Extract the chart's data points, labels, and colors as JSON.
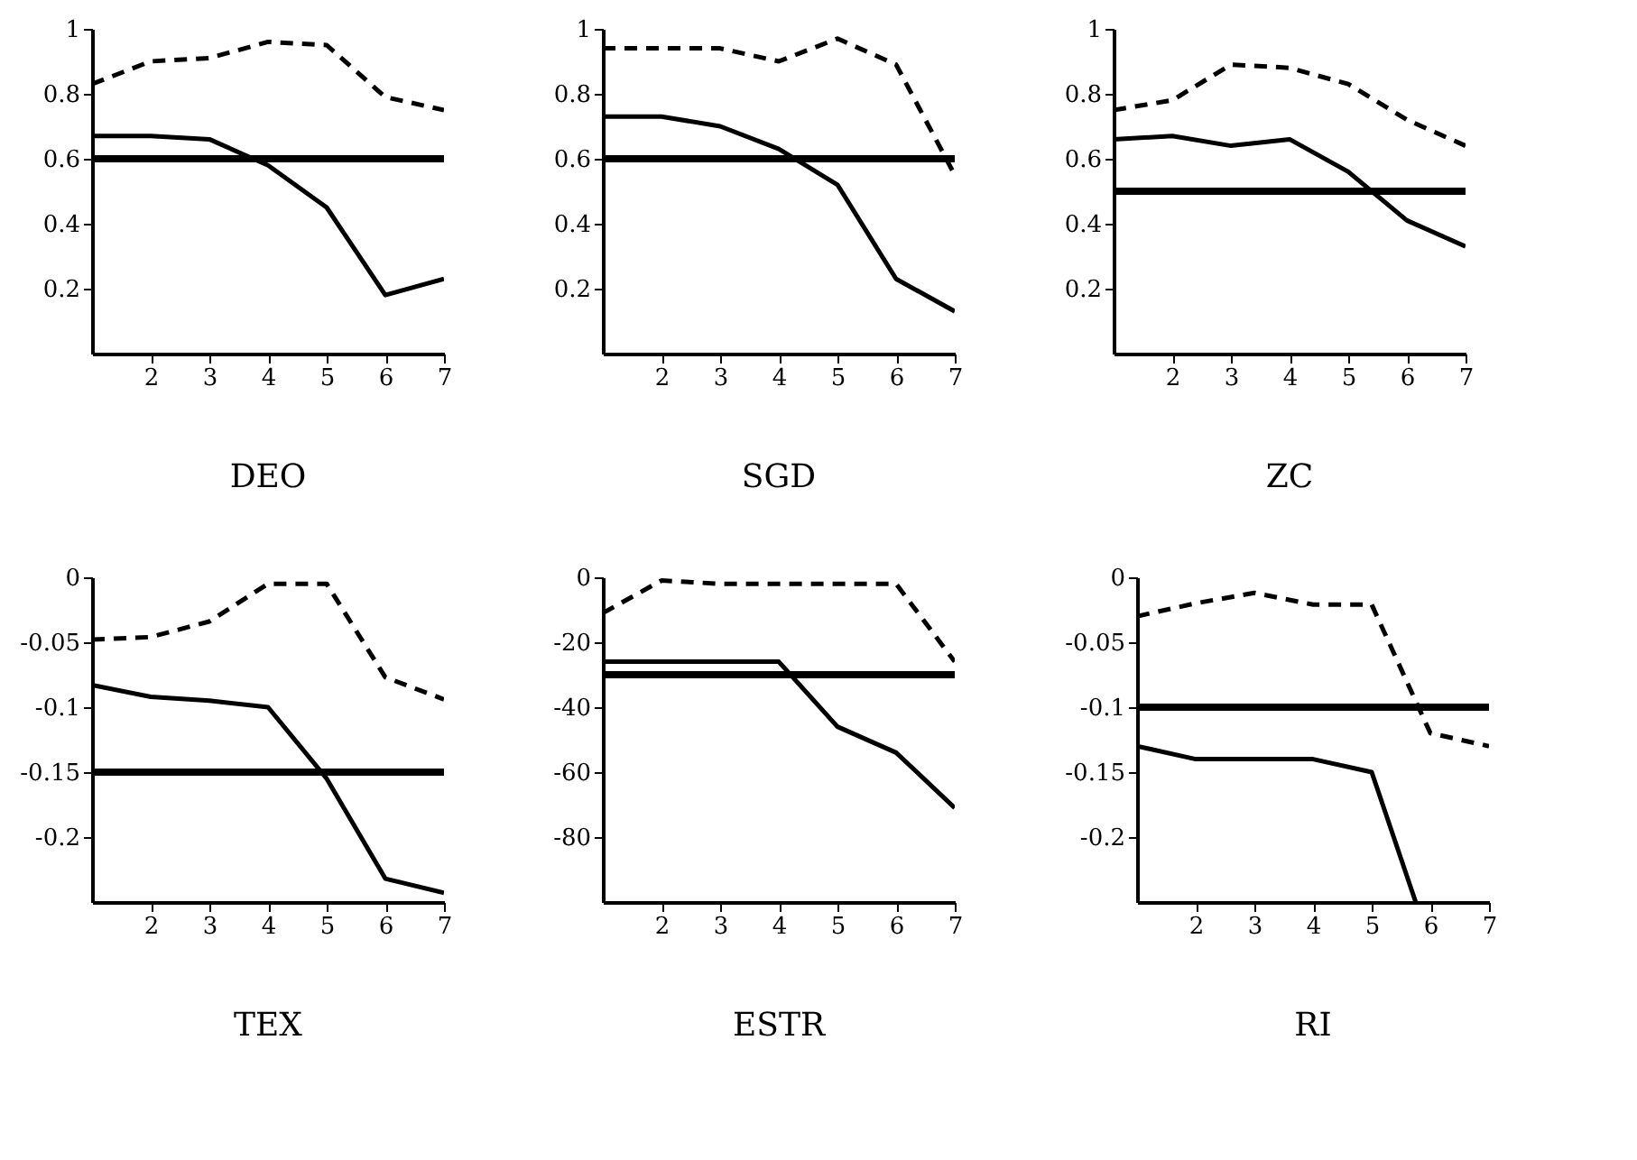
{
  "chart_data": [
    {
      "type": "line",
      "title": "DEO",
      "x": [
        1,
        2,
        3,
        4,
        5,
        6,
        7
      ],
      "xlim": [
        1,
        7
      ],
      "xticks": [
        2,
        3,
        4,
        5,
        6,
        7
      ],
      "ylim": [
        0,
        1
      ],
      "yticks": [
        0.2,
        0.4,
        0.6,
        0.8,
        1
      ],
      "marker": "none",
      "series": [
        {
          "color": "#000000",
          "line_style": "solid",
          "values": [
            0.67,
            0.67,
            0.66,
            0.58,
            0.45,
            0.18,
            0.23
          ]
        },
        {
          "color": "#000000",
          "line_style": "dashed",
          "values": [
            0.83,
            0.9,
            0.91,
            0.96,
            0.95,
            0.79,
            0.75
          ]
        }
      ],
      "ref_lines": [
        {
          "axis": "y",
          "value": 0.6,
          "color": "#000000"
        }
      ]
    },
    {
      "type": "line",
      "title": "SGD",
      "x": [
        1,
        2,
        3,
        4,
        5,
        6,
        7
      ],
      "xlim": [
        1,
        7
      ],
      "xticks": [
        2,
        3,
        4,
        5,
        6,
        7
      ],
      "ylim": [
        0,
        1
      ],
      "yticks": [
        0.2,
        0.4,
        0.6,
        0.8,
        1
      ],
      "marker": "none",
      "series": [
        {
          "color": "#000000",
          "line_style": "solid",
          "values": [
            0.73,
            0.73,
            0.7,
            0.63,
            0.52,
            0.23,
            0.13
          ]
        },
        {
          "color": "#000000",
          "line_style": "dashed",
          "values": [
            0.94,
            0.94,
            0.94,
            0.9,
            0.97,
            0.89,
            0.55
          ]
        }
      ],
      "ref_lines": [
        {
          "axis": "y",
          "value": 0.6,
          "color": "#000000"
        }
      ]
    },
    {
      "type": "line",
      "title": "ZC",
      "x": [
        1,
        2,
        3,
        4,
        5,
        6,
        7
      ],
      "xlim": [
        1,
        7
      ],
      "xticks": [
        2,
        3,
        4,
        5,
        6,
        7
      ],
      "ylim": [
        0,
        1
      ],
      "yticks": [
        0.2,
        0.4,
        0.6,
        0.8,
        1
      ],
      "marker": "none",
      "series": [
        {
          "color": "#000000",
          "line_style": "solid",
          "values": [
            0.66,
            0.67,
            0.64,
            0.66,
            0.56,
            0.41,
            0.33
          ]
        },
        {
          "color": "#000000",
          "line_style": "dashed",
          "values": [
            0.75,
            0.78,
            0.89,
            0.88,
            0.83,
            0.72,
            0.64
          ]
        }
      ],
      "ref_lines": [
        {
          "axis": "y",
          "value": 0.5,
          "color": "#000000"
        }
      ]
    },
    {
      "type": "line",
      "title": "TEX",
      "x": [
        1,
        2,
        3,
        4,
        5,
        6,
        7
      ],
      "xlim": [
        1,
        7
      ],
      "xticks": [
        2,
        3,
        4,
        5,
        6,
        7
      ],
      "ylim": [
        -0.25,
        0
      ],
      "yticks": [
        -0.2,
        -0.15,
        -0.1,
        -0.05,
        0
      ],
      "marker": "none",
      "series": [
        {
          "color": "#000000",
          "line_style": "solid",
          "values": [
            -0.083,
            -0.092,
            -0.095,
            -0.1,
            -0.155,
            -0.232,
            -0.243
          ]
        },
        {
          "color": "#000000",
          "line_style": "dashed",
          "values": [
            -0.048,
            -0.046,
            -0.034,
            -0.005,
            -0.005,
            -0.077,
            -0.094
          ]
        }
      ],
      "ref_lines": [
        {
          "axis": "y",
          "value": -0.15,
          "color": "#000000"
        }
      ]
    },
    {
      "type": "line",
      "title": "ESTR",
      "x": [
        1,
        2,
        3,
        4,
        5,
        6,
        7
      ],
      "xlim": [
        1,
        7
      ],
      "xticks": [
        2,
        3,
        4,
        5,
        6,
        7
      ],
      "ylim": [
        -100,
        0
      ],
      "yticks": [
        -80,
        -60,
        -40,
        -20,
        0
      ],
      "marker": "none",
      "series": [
        {
          "color": "#000000",
          "line_style": "solid",
          "values": [
            -26,
            -26,
            -26,
            -26,
            -46,
            -54,
            -71
          ]
        },
        {
          "color": "#000000",
          "line_style": "dashed",
          "values": [
            -11,
            -1,
            -2,
            -2,
            -2,
            -2,
            -26
          ]
        }
      ],
      "ref_lines": [
        {
          "axis": "y",
          "value": -30,
          "color": "#000000"
        }
      ]
    },
    {
      "type": "line",
      "title": "RI",
      "x": [
        1,
        2,
        3,
        4,
        5,
        6,
        7
      ],
      "xlim": [
        1,
        7
      ],
      "xticks": [
        2,
        3,
        4,
        5,
        6,
        7
      ],
      "ylim": [
        -0.25,
        0
      ],
      "yticks": [
        -0.2,
        -0.15,
        -0.1,
        -0.05,
        0
      ],
      "marker": "none",
      "series": [
        {
          "color": "#000000",
          "line_style": "solid",
          "x": [
            1,
            2,
            3,
            4,
            5,
            5.75
          ],
          "values": [
            -0.13,
            -0.14,
            -0.14,
            -0.14,
            -0.15,
            -0.25
          ]
        },
        {
          "color": "#000000",
          "line_style": "dashed",
          "values": [
            -0.03,
            -0.02,
            -0.012,
            -0.021,
            -0.021,
            -0.12,
            -0.13
          ]
        }
      ],
      "ref_lines": [
        {
          "axis": "y",
          "value": -0.1,
          "color": "#000000"
        }
      ]
    }
  ]
}
